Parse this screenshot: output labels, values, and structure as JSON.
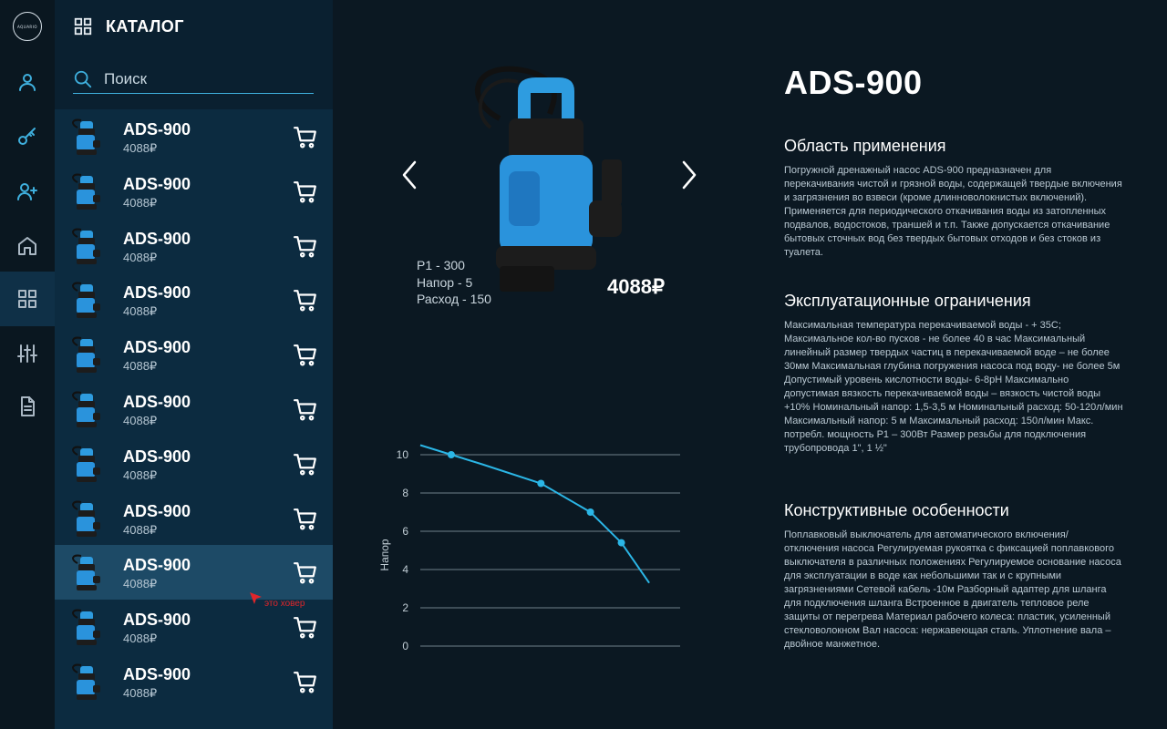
{
  "brand": {
    "logo_text": "AQUARIO"
  },
  "rail": {
    "items": [
      {
        "name": "user-icon",
        "active": false
      },
      {
        "name": "key-icon",
        "active": false
      },
      {
        "name": "add-user-icon",
        "active": false
      },
      {
        "name": "home-icon",
        "active": false
      },
      {
        "name": "grid-icon",
        "active": true
      },
      {
        "name": "sliders-icon",
        "active": false
      },
      {
        "name": "document-icon",
        "active": false
      }
    ]
  },
  "catalog": {
    "title": "КАТАЛОГ",
    "search_placeholder": "Поиск",
    "items": [
      {
        "name": "ADS-900",
        "price": "4088₽"
      },
      {
        "name": "ADS-900",
        "price": "4088₽"
      },
      {
        "name": "ADS-900",
        "price": "4088₽"
      },
      {
        "name": "ADS-900",
        "price": "4088₽"
      },
      {
        "name": "ADS-900",
        "price": "4088₽"
      },
      {
        "name": "ADS-900",
        "price": "4088₽"
      },
      {
        "name": "ADS-900",
        "price": "4088₽"
      },
      {
        "name": "ADS-900",
        "price": "4088₽"
      },
      {
        "name": "ADS-900",
        "price": "4088₽"
      },
      {
        "name": "ADS-900",
        "price": "4088₽"
      },
      {
        "name": "ADS-900",
        "price": "4088₽"
      }
    ],
    "hovered_index": 8,
    "hover_note": "это ховер"
  },
  "product": {
    "name": "ADS-900",
    "price": "4088₽",
    "specs": [
      "P1 - 300",
      "Напор - 5",
      "Расход - 150"
    ],
    "sections": [
      {
        "title": "Область применения",
        "text": "Погружной дренажный насос ADS-900  предназначен для перекачивания чистой и грязной воды,  содержащей твердые включения и загрязнения во взвеси (кроме длинноволокнистых включений). Применяется для периодического откачивания воды из затопленных подвалов, водостоков, траншей и т.п. Также допускается откачивание бытовых сточных вод без твердых бытовых отходов и без стоков из туалета."
      },
      {
        "title": "Эксплуатационные ограничения",
        "text": "Максимальная температура перекачиваемой воды - + 35С; Максимальное кол-во пусков - не более 40 в час Максимальный линейный размер твердых частиц в перекачиваемой воде – не более 30мм Максимальная глубина погружения насоса под воду- не более 5м Допустимый уровень кислотности воды- 6-8pH Максимально допустимая вязкость перекачиваемой воды – вязкость чистой воды +10% Номинальный напор: 1,5-3,5 м Номинальный расход: 50-120л/мин Максимальный напор: 5 м Максимальный расход: 150л/мин Макс. потребл. мощность Р1 – 300Вт Размер резьбы для подключения трубопровода 1\", 1 ½\""
      },
      {
        "title": "Конструктивные особенности",
        "text": "Поплавковый выключатель для автоматического включения/отключения насоса Регулируемая рукоятка с фиксацией поплавкового выключателя в различных положениях Регулируемое основание насоса для эксплуатации в воде как небольшими так и с крупными загрязнениями Сетевой кабель -10м Разборный адаптер для шланга для подключения шланга Встроенное в двигатель тепловое реле защиты от перегрева Материал рабочего колеса: пластик, усиленный стекловолокном Вал насоса: нержавеющая сталь. Уплотнение вала – двойное манжетное."
      }
    ]
  },
  "chart_data": {
    "type": "line",
    "ylabel": "Напор",
    "xlabel": "",
    "yticks": [
      0,
      2,
      4,
      6,
      8,
      10
    ],
    "ylim": [
      0,
      10
    ],
    "x": [
      0,
      1,
      2,
      3.9,
      5.5,
      6.5,
      7.4
    ],
    "values": [
      10.5,
      10,
      9.5,
      8.5,
      7,
      5.4,
      3.3
    ],
    "markers": [
      1,
      3.9,
      5.5,
      6.5
    ],
    "grid": true,
    "color": "#2bb6e6"
  },
  "colors": {
    "accent": "#3fb0de",
    "panel": "#0c2b40",
    "hover": "#1d4a66",
    "background": "#0b1822",
    "note": "#e0262a"
  }
}
